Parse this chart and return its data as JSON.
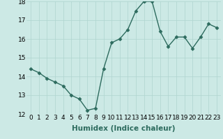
{
  "x": [
    0,
    1,
    2,
    3,
    4,
    5,
    6,
    7,
    8,
    9,
    10,
    11,
    12,
    13,
    14,
    15,
    16,
    17,
    18,
    19,
    20,
    21,
    22,
    23
  ],
  "y": [
    14.4,
    14.2,
    13.9,
    13.7,
    13.5,
    13.0,
    12.8,
    12.2,
    12.3,
    14.4,
    15.8,
    16.0,
    16.5,
    17.5,
    18.0,
    18.0,
    16.4,
    15.6,
    16.1,
    16.1,
    15.5,
    16.1,
    16.8,
    16.6
  ],
  "xlabel": "Humidex (Indice chaleur)",
  "ylim": [
    12,
    18
  ],
  "xlim": [
    -0.5,
    23.5
  ],
  "yticks": [
    12,
    13,
    14,
    15,
    16,
    17,
    18
  ],
  "xticks": [
    0,
    1,
    2,
    3,
    4,
    5,
    6,
    7,
    8,
    9,
    10,
    11,
    12,
    13,
    14,
    15,
    16,
    17,
    18,
    19,
    20,
    21,
    22,
    23
  ],
  "line_color": "#2d6b5e",
  "marker": "D",
  "marker_size": 2.5,
  "bg_color": "#cce9e5",
  "grid_color": "#afd4cf",
  "tick_label_fontsize": 6.5,
  "xlabel_fontsize": 7.5,
  "linewidth": 1.0
}
